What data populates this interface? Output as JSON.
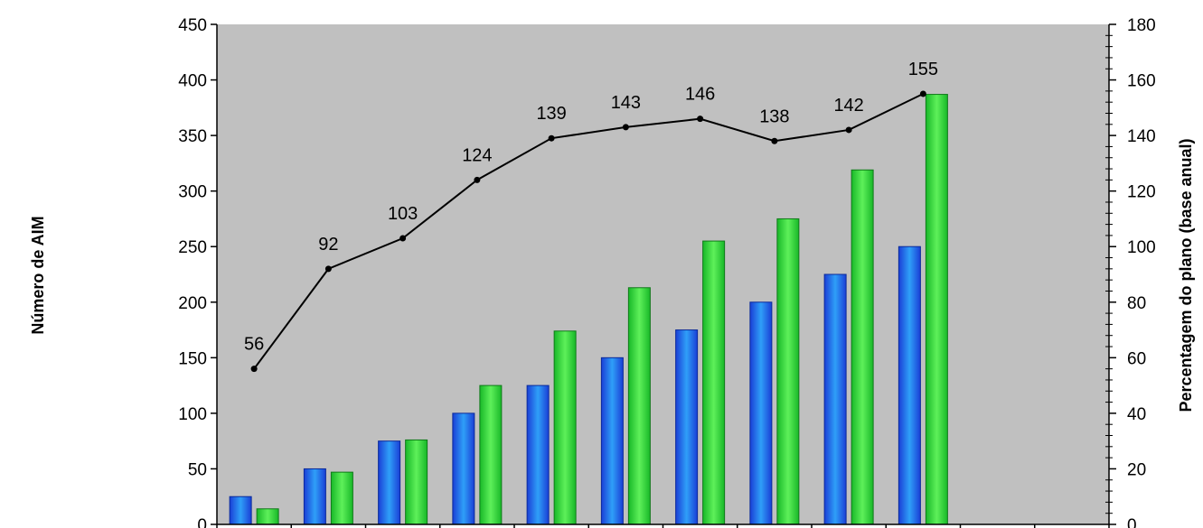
{
  "chart_data": {
    "type": "bar",
    "ylabel": "Número de AIM",
    "y2label": "Percentagem do plano (base anual)",
    "ylim": [
      0,
      450
    ],
    "y2lim": [
      0,
      180
    ],
    "yticks": [
      "0",
      "50",
      "100",
      "150",
      "200",
      "250",
      "300",
      "350",
      "400",
      "450"
    ],
    "y2ticks": [
      "0",
      "20",
      "40",
      "60",
      "80",
      "100",
      "120",
      "140",
      "160",
      "180"
    ],
    "category_count": 12,
    "grid": false,
    "legend": "none",
    "series": [
      {
        "values": [
          25,
          50,
          75,
          100,
          125,
          150,
          175,
          200,
          225,
          250
        ],
        "color": "#1f5cf0",
        "axis": "left"
      },
      {
        "values": [
          14,
          47,
          76,
          125,
          174,
          213,
          255,
          275,
          319,
          387
        ],
        "color": "#1fcc2a",
        "axis": "left"
      }
    ],
    "line_series": {
      "values": [
        56,
        92,
        103,
        124,
        139,
        143,
        146,
        138,
        142,
        155
      ],
      "labels": [
        "56",
        "92",
        "103",
        "124",
        "139",
        "143",
        "146",
        "138",
        "142",
        "155"
      ],
      "axis": "right",
      "color": "#000000"
    },
    "colors": {
      "plot_background": "#c0c0c0",
      "bar1_light": "#2f9ff8",
      "bar1_dark": "#1a3fd6",
      "bar2_light": "#5ef05a",
      "bar2_dark": "#18b828"
    }
  }
}
